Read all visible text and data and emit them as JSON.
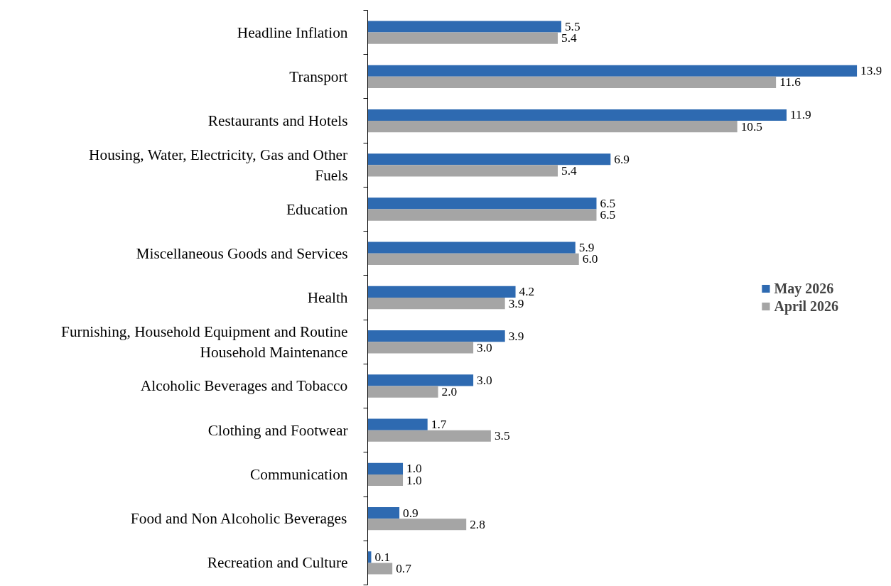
{
  "chart_data": {
    "type": "bar",
    "orientation": "horizontal",
    "legend": "right",
    "grid": false,
    "categories": [
      "Headline Inflation",
      "Transport",
      "Restaurants and Hotels",
      "Housing, Water, Electricity, Gas and Other Fuels",
      "Education",
      "Miscellaneous Goods and Services",
      "Health",
      "Furnishing, Household Equipment and Routine Household Maintenance",
      "Alcoholic Beverages and Tobacco",
      "Clothing and Footwear",
      "Communication",
      "Food and Non Alcoholic Beverages",
      "Recreation and Culture"
    ],
    "series": [
      {
        "name": "May 2026",
        "color": "#2e6ab1",
        "values": [
          5.5,
          13.9,
          11.9,
          6.9,
          6.5,
          5.9,
          4.2,
          3.9,
          3.0,
          1.7,
          1.0,
          0.9,
          0.1
        ],
        "value_labels": [
          "5.5",
          "13.9",
          "11.9",
          "6.9",
          "6.5",
          "5.9",
          "4.2",
          "3.9",
          "3.0",
          "1.7",
          "1.0",
          "0.9",
          "0.1"
        ]
      },
      {
        "name": "April 2026",
        "color": "#a5a5a5",
        "values": [
          5.4,
          11.6,
          10.5,
          5.4,
          6.5,
          6.0,
          3.9,
          3.0,
          2.0,
          3.5,
          1.0,
          2.8,
          0.7
        ],
        "value_labels": [
          "5.4",
          "11.6",
          "10.5",
          "5.4",
          "6.5",
          "6.0",
          "3.9",
          "3.0",
          "2.0",
          "3.5",
          "1.0",
          "2.8",
          "0.7"
        ]
      }
    ]
  }
}
